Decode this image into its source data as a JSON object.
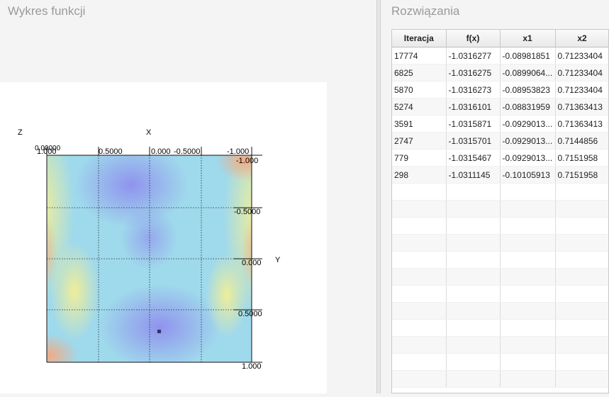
{
  "left_panel": {
    "title": "Wykres funkcji"
  },
  "right_panel": {
    "title": "Rozwiązania"
  },
  "plot": {
    "axis_z_label": "Z",
    "axis_x_label": "X",
    "axis_y_label": "Y",
    "x_ticks": [
      "1.000",
      "0.5000",
      "0.000",
      "-0.5000",
      "-1.000"
    ],
    "y_ticks": [
      "-1.000",
      "-0.5000",
      "0.000",
      "0.5000",
      "1.000"
    ],
    "z_tick": "0.00000"
  },
  "table": {
    "columns": [
      "Iteracja",
      "f(x)",
      "x1",
      "x2"
    ],
    "rows": [
      [
        "17774",
        "-1.0316277",
        "-0.08981851",
        "0.71233404"
      ],
      [
        "6825",
        "-1.0316275",
        "-0.0899064...",
        "0.71233404"
      ],
      [
        "5870",
        "-1.0316273",
        "-0.08953823",
        "0.71233404"
      ],
      [
        "5274",
        "-1.0316101",
        "-0.08831959",
        "0.71363413"
      ],
      [
        "3591",
        "-1.0315871",
        "-0.0929013...",
        "0.71363413"
      ],
      [
        "2747",
        "-1.0315701",
        "-0.0929013...",
        "0.7144856"
      ],
      [
        "779",
        "-1.0315467",
        "-0.0929013...",
        "0.7151958"
      ],
      [
        "298",
        "-1.0311145",
        "-0.10105913",
        "0.7151958"
      ]
    ],
    "empty_rows": 12
  }
}
